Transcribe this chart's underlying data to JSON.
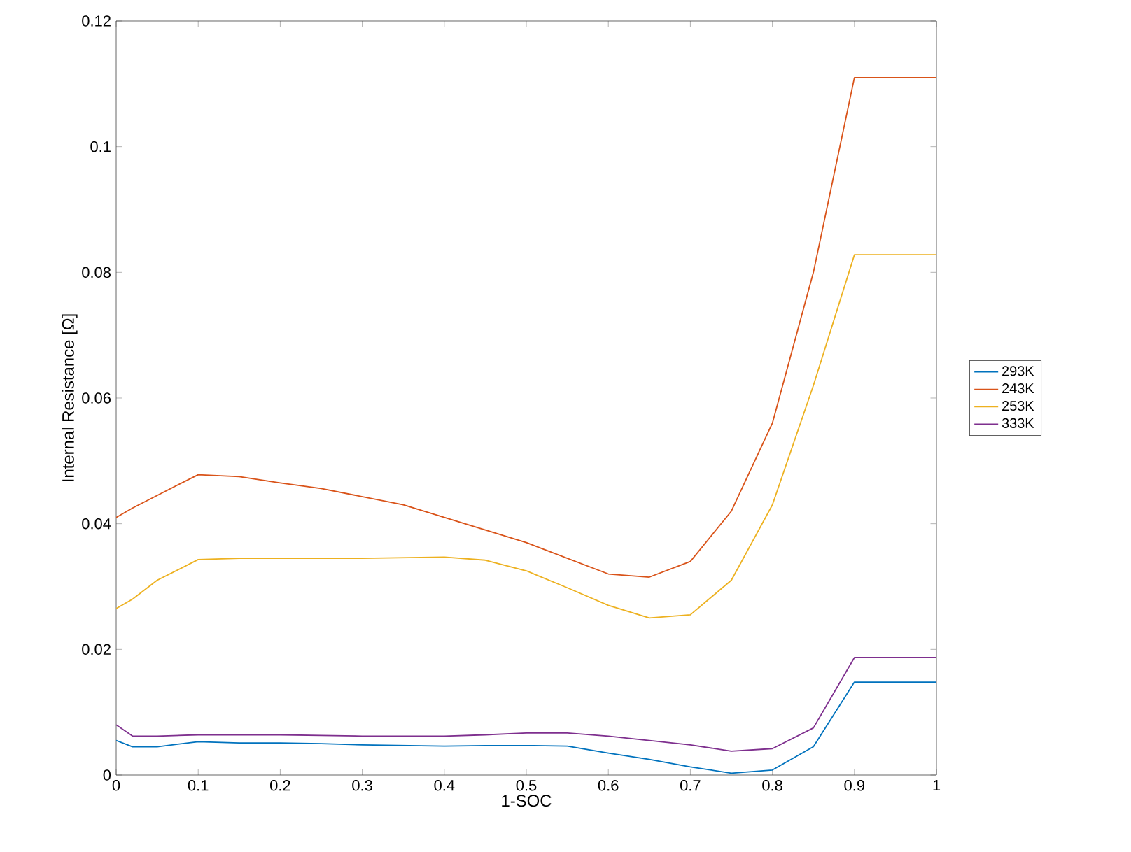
{
  "chart_data": {
    "type": "line",
    "xlabel": "1-SOC",
    "ylabel": "Internal Resistance [Ω]",
    "x": [
      0,
      0.02,
      0.05,
      0.1,
      0.15,
      0.2,
      0.25,
      0.3,
      0.35,
      0.4,
      0.45,
      0.5,
      0.55,
      0.6,
      0.65,
      0.7,
      0.75,
      0.8,
      0.85,
      0.9,
      1
    ],
    "series": [
      {
        "name": "293K",
        "color": "#0072bd",
        "values": [
          0.0055,
          0.0045,
          0.0045,
          0.0053,
          0.0051,
          0.0051,
          0.005,
          0.0048,
          0.0047,
          0.0046,
          0.0047,
          0.0047,
          0.0046,
          0.0035,
          0.0025,
          0.0013,
          0.0003,
          0.0008,
          0.0045,
          0.0148,
          0.0148
        ]
      },
      {
        "name": "243K",
        "color": "#d95319",
        "values": [
          0.041,
          0.0425,
          0.0445,
          0.0478,
          0.0475,
          0.0465,
          0.0456,
          0.0443,
          0.043,
          0.041,
          0.039,
          0.037,
          0.0345,
          0.032,
          0.0315,
          0.034,
          0.042,
          0.056,
          0.08,
          0.111,
          0.111
        ]
      },
      {
        "name": "253K",
        "color": "#edb120",
        "values": [
          0.0265,
          0.028,
          0.031,
          0.0343,
          0.0345,
          0.0345,
          0.0345,
          0.0345,
          0.0346,
          0.0347,
          0.0342,
          0.0325,
          0.0298,
          0.027,
          0.025,
          0.0255,
          0.031,
          0.043,
          0.062,
          0.0828,
          0.0828
        ]
      },
      {
        "name": "333K",
        "color": "#7e2f8e",
        "values": [
          0.008,
          0.0062,
          0.0062,
          0.0064,
          0.0064,
          0.0064,
          0.0063,
          0.0062,
          0.0062,
          0.0062,
          0.0064,
          0.0067,
          0.0067,
          0.0062,
          0.0055,
          0.0048,
          0.0038,
          0.0042,
          0.0075,
          0.0187,
          0.0187
        ]
      }
    ],
    "xlim": [
      0,
      1
    ],
    "xticks": [
      0,
      0.1,
      0.2,
      0.3,
      0.4,
      0.5,
      0.6,
      0.7,
      0.8,
      0.9,
      1
    ],
    "ylim": [
      0,
      0.12
    ],
    "yticks": [
      0,
      0.02,
      0.04,
      0.06,
      0.08,
      0.1,
      0.12
    ],
    "legend": "right",
    "grid": false,
    "line_style": "solid"
  }
}
